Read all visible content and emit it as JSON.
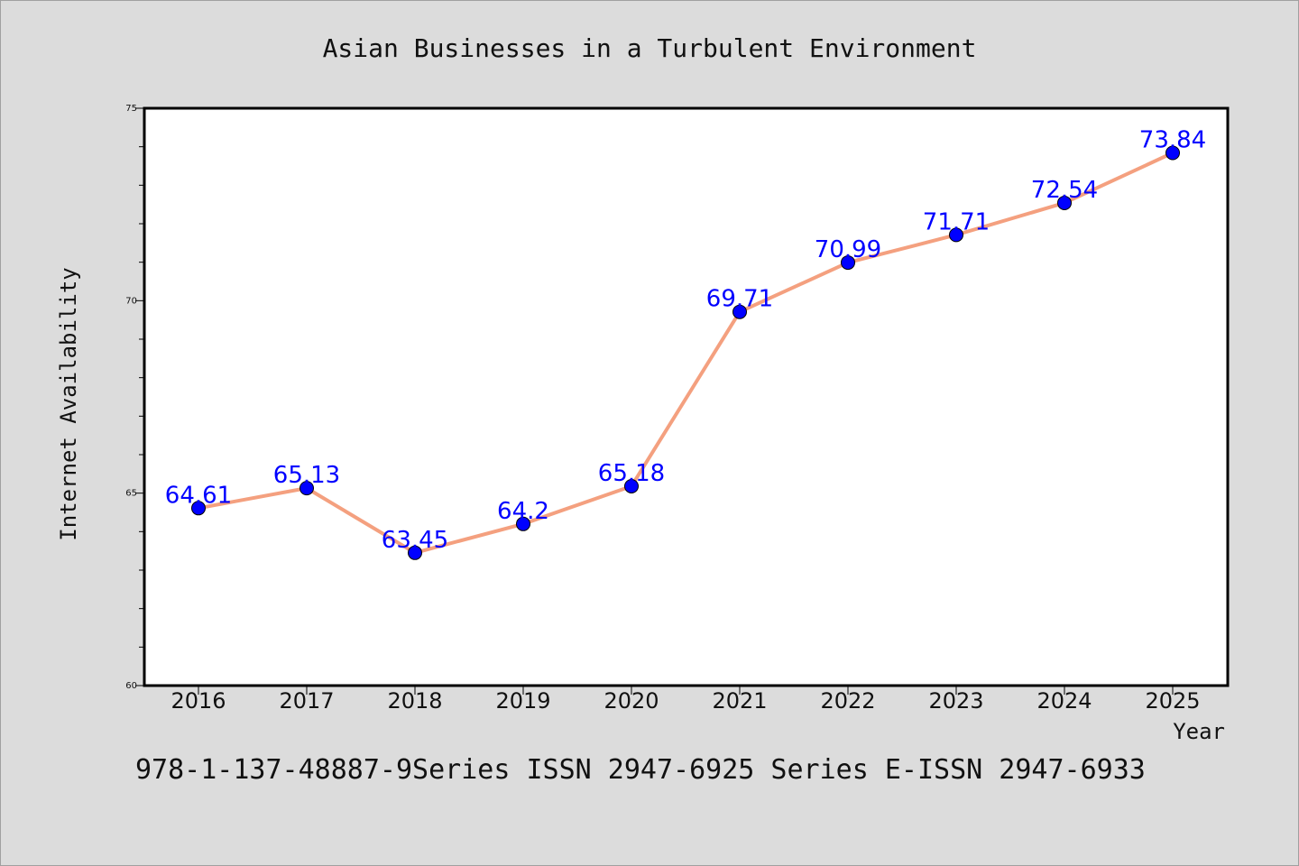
{
  "chart_data": {
    "type": "line",
    "title": "Asian Businesses in a Turbulent Environment",
    "xlabel": "Year",
    "ylabel": "Internet Availability",
    "x": [
      "2016",
      "2017",
      "2018",
      "2019",
      "2020",
      "2021",
      "2022",
      "2023",
      "2024",
      "2025"
    ],
    "series": [
      {
        "values": [
          64.61,
          65.13,
          63.45,
          64.2,
          65.18,
          69.71,
          70.99,
          71.71,
          72.54,
          73.84
        ],
        "labels": [
          "64.61",
          "65.13",
          "63.45",
          "64.2",
          "65.18",
          "69.71",
          "70.99",
          "71.71",
          "72.54",
          "73.84"
        ],
        "line_color": "#f4a07f",
        "marker_color": "#0000ff"
      }
    ],
    "ylim": [
      60,
      75
    ],
    "yticks": [
      "60",
      "65",
      "70",
      "75"
    ],
    "grid": false,
    "legend": "none"
  },
  "footer": "978-1-137-48887-9Series ISSN 2947-6925 Series E-ISSN 2947-6933",
  "colors": {
    "background": "#dcdcdc",
    "plot_background": "#ffffff"
  }
}
